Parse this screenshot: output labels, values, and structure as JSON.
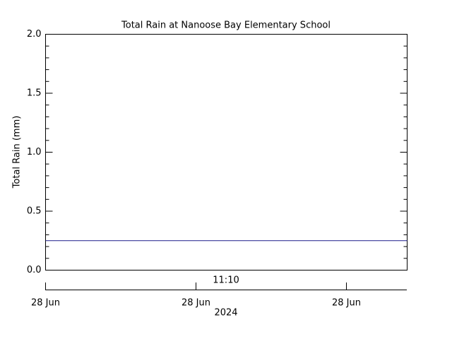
{
  "chart_data": {
    "type": "hline",
    "title": "Total Rain at Nanoose Bay Elementary School",
    "y_label": "Total Rain (mm)",
    "values": [
      0.25
    ],
    "color": "#1a1a8c",
    "ylim": [
      0,
      2
    ],
    "yticks": [
      {
        "value": 0,
        "label": "0.0"
      },
      {
        "value": 0.5,
        "label": "0.5"
      },
      {
        "value": 1,
        "label": "1.0"
      },
      {
        "value": 1.5,
        "label": "1.5"
      },
      {
        "value": 2,
        "label": "2.0"
      }
    ],
    "minor_per_major": 5,
    "xticks": [
      "28 Jun",
      "28 Jun",
      "28 Jun"
    ],
    "time_label": "11:10",
    "year_label": "2024"
  }
}
